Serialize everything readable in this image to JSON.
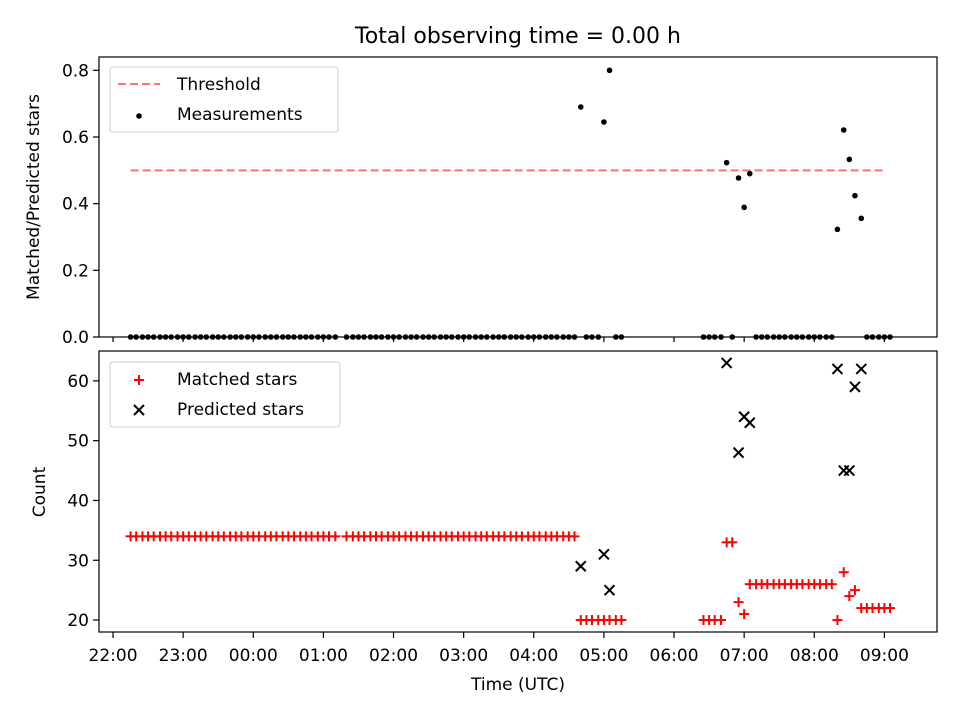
{
  "title": "Total observing time = 0.00 h",
  "chart_data": [
    {
      "type": "scatter",
      "ylabel": "Matched/Predicted stars",
      "xlim": [
        21.8,
        33.75
      ],
      "ylim": [
        0,
        0.84
      ],
      "yticks": [
        0.0,
        0.2,
        0.4,
        0.6,
        0.8
      ],
      "ytick_labels": [
        "0.0",
        "0.2",
        "0.4",
        "0.6",
        "0.8"
      ],
      "legend": {
        "placement": "upper-left",
        "entries": [
          "Threshold",
          "Measurements"
        ]
      },
      "threshold": {
        "name": "Threshold",
        "value": 0.5,
        "x_range": [
          22.25,
          33.02
        ],
        "color": "#ff6f6f",
        "dash": true
      },
      "series": [
        {
          "name": "Measurements",
          "color": "#000000",
          "points": [
            [
              22.25,
              0.0
            ],
            [
              22.33,
              0.0
            ],
            [
              22.42,
              0.0
            ],
            [
              22.5,
              0.0
            ],
            [
              22.58,
              0.0
            ],
            [
              22.67,
              0.0
            ],
            [
              22.75,
              0.0
            ],
            [
              22.83,
              0.0
            ],
            [
              22.92,
              0.0
            ],
            [
              23.0,
              0.0
            ],
            [
              23.08,
              0.0
            ],
            [
              23.17,
              0.0
            ],
            [
              23.25,
              0.0
            ],
            [
              23.33,
              0.0
            ],
            [
              23.42,
              0.0
            ],
            [
              23.5,
              0.0
            ],
            [
              23.58,
              0.0
            ],
            [
              23.67,
              0.0
            ],
            [
              23.75,
              0.0
            ],
            [
              23.83,
              0.0
            ],
            [
              23.92,
              0.0
            ],
            [
              24.0,
              0.0
            ],
            [
              24.08,
              0.0
            ],
            [
              24.17,
              0.0
            ],
            [
              24.25,
              0.0
            ],
            [
              24.33,
              0.0
            ],
            [
              24.42,
              0.0
            ],
            [
              24.5,
              0.0
            ],
            [
              24.58,
              0.0
            ],
            [
              24.67,
              0.0
            ],
            [
              24.75,
              0.0
            ],
            [
              24.83,
              0.0
            ],
            [
              24.92,
              0.0
            ],
            [
              25.0,
              0.0
            ],
            [
              25.08,
              0.0
            ],
            [
              25.17,
              0.0
            ],
            [
              25.33,
              0.0
            ],
            [
              25.42,
              0.0
            ],
            [
              25.5,
              0.0
            ],
            [
              25.58,
              0.0
            ],
            [
              25.67,
              0.0
            ],
            [
              25.75,
              0.0
            ],
            [
              25.83,
              0.0
            ],
            [
              25.92,
              0.0
            ],
            [
              26.0,
              0.0
            ],
            [
              26.08,
              0.0
            ],
            [
              26.17,
              0.0
            ],
            [
              26.25,
              0.0
            ],
            [
              26.33,
              0.0
            ],
            [
              26.42,
              0.0
            ],
            [
              26.5,
              0.0
            ],
            [
              26.58,
              0.0
            ],
            [
              26.67,
              0.0
            ],
            [
              26.75,
              0.0
            ],
            [
              26.83,
              0.0
            ],
            [
              26.92,
              0.0
            ],
            [
              27.0,
              0.0
            ],
            [
              27.08,
              0.0
            ],
            [
              27.17,
              0.0
            ],
            [
              27.25,
              0.0
            ],
            [
              27.33,
              0.0
            ],
            [
              27.42,
              0.0
            ],
            [
              27.5,
              0.0
            ],
            [
              27.58,
              0.0
            ],
            [
              27.67,
              0.0
            ],
            [
              27.75,
              0.0
            ],
            [
              27.83,
              0.0
            ],
            [
              27.92,
              0.0
            ],
            [
              28.0,
              0.0
            ],
            [
              28.08,
              0.0
            ],
            [
              28.17,
              0.0
            ],
            [
              28.25,
              0.0
            ],
            [
              28.33,
              0.0
            ],
            [
              28.42,
              0.0
            ],
            [
              28.5,
              0.0
            ],
            [
              28.58,
              0.0
            ],
            [
              28.67,
              0.69
            ],
            [
              28.75,
              0.0
            ],
            [
              28.83,
              0.0
            ],
            [
              28.92,
              0.0
            ],
            [
              29.0,
              0.645
            ],
            [
              29.08,
              0.8
            ],
            [
              29.17,
              0.0
            ],
            [
              29.25,
              0.0
            ],
            [
              30.42,
              0.0
            ],
            [
              30.5,
              0.0
            ],
            [
              30.58,
              0.0
            ],
            [
              30.67,
              0.0
            ],
            [
              30.75,
              0.523
            ],
            [
              30.83,
              0.0
            ],
            [
              30.92,
              0.477
            ],
            [
              31.0,
              0.389
            ],
            [
              31.08,
              0.49
            ],
            [
              31.17,
              0.0
            ],
            [
              31.25,
              0.0
            ],
            [
              31.33,
              0.0
            ],
            [
              31.42,
              0.0
            ],
            [
              31.5,
              0.0
            ],
            [
              31.58,
              0.0
            ],
            [
              31.67,
              0.0
            ],
            [
              31.75,
              0.0
            ],
            [
              31.83,
              0.0
            ],
            [
              31.92,
              0.0
            ],
            [
              32.0,
              0.0
            ],
            [
              32.08,
              0.0
            ],
            [
              32.17,
              0.0
            ],
            [
              32.25,
              0.0
            ],
            [
              32.33,
              0.323
            ],
            [
              32.42,
              0.621
            ],
            [
              32.5,
              0.533
            ],
            [
              32.58,
              0.424
            ],
            [
              32.67,
              0.356
            ],
            [
              32.75,
              0.0
            ],
            [
              32.83,
              0.0
            ],
            [
              32.92,
              0.0
            ],
            [
              33.0,
              0.0
            ],
            [
              33.08,
              0.0
            ]
          ]
        }
      ]
    },
    {
      "type": "scatter",
      "xlabel": "Time (UTC)",
      "ylabel": "Count",
      "xlim": [
        21.8,
        33.75
      ],
      "ylim": [
        18,
        65
      ],
      "xticks": [
        22,
        23,
        24,
        25,
        26,
        27,
        28,
        29,
        30,
        31,
        32,
        33
      ],
      "xtick_labels": [
        "22:00",
        "23:00",
        "00:00",
        "01:00",
        "02:00",
        "03:00",
        "04:00",
        "05:00",
        "06:00",
        "07:00",
        "08:00",
        "09:00"
      ],
      "yticks": [
        20,
        30,
        40,
        50,
        60
      ],
      "ytick_labels": [
        "20",
        "30",
        "40",
        "50",
        "60"
      ],
      "legend": {
        "placement": "upper-left",
        "entries": [
          "Matched stars",
          "Predicted stars"
        ]
      },
      "series": [
        {
          "name": "Matched stars",
          "marker": "plus",
          "color": "#ff0000",
          "points": [
            [
              22.25,
              34
            ],
            [
              22.33,
              34
            ],
            [
              22.42,
              34
            ],
            [
              22.5,
              34
            ],
            [
              22.58,
              34
            ],
            [
              22.67,
              34
            ],
            [
              22.75,
              34
            ],
            [
              22.83,
              34
            ],
            [
              22.92,
              34
            ],
            [
              23.0,
              34
            ],
            [
              23.08,
              34
            ],
            [
              23.17,
              34
            ],
            [
              23.25,
              34
            ],
            [
              23.33,
              34
            ],
            [
              23.42,
              34
            ],
            [
              23.5,
              34
            ],
            [
              23.58,
              34
            ],
            [
              23.67,
              34
            ],
            [
              23.75,
              34
            ],
            [
              23.83,
              34
            ],
            [
              23.92,
              34
            ],
            [
              24.0,
              34
            ],
            [
              24.08,
              34
            ],
            [
              24.17,
              34
            ],
            [
              24.25,
              34
            ],
            [
              24.33,
              34
            ],
            [
              24.42,
              34
            ],
            [
              24.5,
              34
            ],
            [
              24.58,
              34
            ],
            [
              24.67,
              34
            ],
            [
              24.75,
              34
            ],
            [
              24.83,
              34
            ],
            [
              24.92,
              34
            ],
            [
              25.0,
              34
            ],
            [
              25.08,
              34
            ],
            [
              25.17,
              34
            ],
            [
              25.33,
              34
            ],
            [
              25.42,
              34
            ],
            [
              25.5,
              34
            ],
            [
              25.58,
              34
            ],
            [
              25.67,
              34
            ],
            [
              25.75,
              34
            ],
            [
              25.83,
              34
            ],
            [
              25.92,
              34
            ],
            [
              26.0,
              34
            ],
            [
              26.08,
              34
            ],
            [
              26.17,
              34
            ],
            [
              26.25,
              34
            ],
            [
              26.33,
              34
            ],
            [
              26.42,
              34
            ],
            [
              26.5,
              34
            ],
            [
              26.58,
              34
            ],
            [
              26.67,
              34
            ],
            [
              26.75,
              34
            ],
            [
              26.83,
              34
            ],
            [
              26.92,
              34
            ],
            [
              27.0,
              34
            ],
            [
              27.08,
              34
            ],
            [
              27.17,
              34
            ],
            [
              27.25,
              34
            ],
            [
              27.33,
              34
            ],
            [
              27.42,
              34
            ],
            [
              27.5,
              34
            ],
            [
              27.58,
              34
            ],
            [
              27.67,
              34
            ],
            [
              27.75,
              34
            ],
            [
              27.83,
              34
            ],
            [
              27.92,
              34
            ],
            [
              28.0,
              34
            ],
            [
              28.08,
              34
            ],
            [
              28.17,
              34
            ],
            [
              28.25,
              34
            ],
            [
              28.33,
              34
            ],
            [
              28.42,
              34
            ],
            [
              28.5,
              34
            ],
            [
              28.58,
              34
            ],
            [
              28.67,
              20
            ],
            [
              28.75,
              20
            ],
            [
              28.83,
              20
            ],
            [
              28.92,
              20
            ],
            [
              29.0,
              20
            ],
            [
              29.08,
              20
            ],
            [
              29.17,
              20
            ],
            [
              29.25,
              20
            ],
            [
              30.42,
              20
            ],
            [
              30.5,
              20
            ],
            [
              30.58,
              20
            ],
            [
              30.67,
              20
            ],
            [
              30.75,
              33
            ],
            [
              30.83,
              33
            ],
            [
              30.92,
              23
            ],
            [
              31.0,
              21
            ],
            [
              31.08,
              26
            ],
            [
              31.17,
              26
            ],
            [
              31.25,
              26
            ],
            [
              31.33,
              26
            ],
            [
              31.42,
              26
            ],
            [
              31.5,
              26
            ],
            [
              31.58,
              26
            ],
            [
              31.67,
              26
            ],
            [
              31.75,
              26
            ],
            [
              31.83,
              26
            ],
            [
              31.92,
              26
            ],
            [
              32.0,
              26
            ],
            [
              32.08,
              26
            ],
            [
              32.17,
              26
            ],
            [
              32.25,
              26
            ],
            [
              32.33,
              20
            ],
            [
              32.42,
              28
            ],
            [
              32.5,
              24
            ],
            [
              32.58,
              25
            ],
            [
              32.67,
              22
            ],
            [
              32.75,
              22
            ],
            [
              32.83,
              22
            ],
            [
              32.92,
              22
            ],
            [
              33.0,
              22
            ],
            [
              33.08,
              22
            ]
          ]
        },
        {
          "name": "Predicted stars",
          "marker": "x",
          "color": "#000000",
          "points": [
            [
              28.67,
              29
            ],
            [
              29.0,
              31
            ],
            [
              29.08,
              25
            ],
            [
              30.75,
              63
            ],
            [
              30.92,
              48
            ],
            [
              31.0,
              54
            ],
            [
              31.08,
              53
            ],
            [
              32.33,
              62
            ],
            [
              32.42,
              45
            ],
            [
              32.5,
              45
            ],
            [
              32.58,
              59
            ],
            [
              32.67,
              62
            ]
          ]
        }
      ]
    }
  ]
}
